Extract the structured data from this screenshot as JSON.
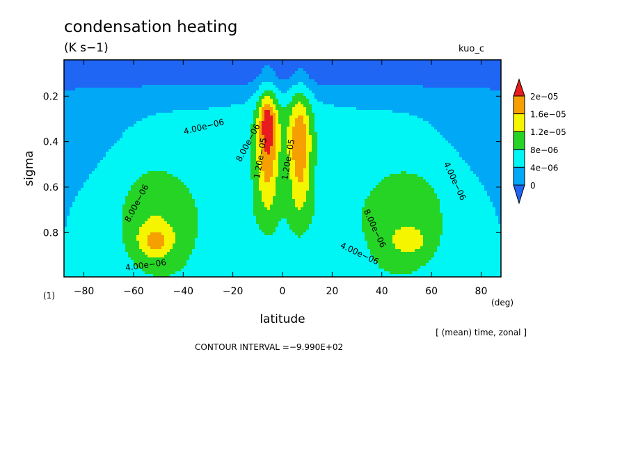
{
  "chart_data": {
    "type": "heatmap",
    "title": "condensation heating",
    "units": "(K s−1)",
    "variable_tag": "kuo_c",
    "xlabel": "latitude",
    "ylabel": "sigma",
    "x_unit_label": "(deg)",
    "y_extra_label": "(1)",
    "xlim": [
      -88,
      88
    ],
    "ylim": [
      0.04,
      0.995
    ],
    "y_inverted": true,
    "x_ticks": [
      -80,
      -60,
      -40,
      -20,
      0,
      20,
      40,
      60,
      80
    ],
    "x_tick_labels": [
      "−80",
      "−60",
      "−40",
      "−20",
      "0",
      "20",
      "40",
      "60",
      "80"
    ],
    "y_ticks": [
      0.2,
      0.4,
      0.6,
      0.8
    ],
    "y_tick_labels": [
      "0.2",
      "0.4",
      "0.6",
      "0.8"
    ],
    "contour_labels": [
      "4.00e−06",
      "8.00e−06",
      "1.20e−05"
    ],
    "colorbar": {
      "labels": [
        "2e−05",
        "1.6e−05",
        "1.2e−05",
        "8e−06",
        "4e−06",
        "0"
      ],
      "levels": [
        0,
        4e-06,
        8e-06,
        1.2e-05,
        1.6e-05,
        2e-05
      ],
      "colors": [
        "#1f66f5",
        "#00a8f5",
        "#00f5f5",
        "#26d426",
        "#f5f500",
        "#f5a000",
        "#e81c1c"
      ]
    },
    "field_features": [
      {
        "name": "equatorial tower south of equator",
        "lat": -6,
        "sigma": 0.33,
        "max": 2.05e-05
      },
      {
        "name": "equatorial tower north of equator",
        "lat": 7,
        "sigma": 0.35,
        "max": 1.75e-05
      },
      {
        "name": "southern midlatitude maximum",
        "lat": -51,
        "sigma": 0.84,
        "max": 1.7e-05
      },
      {
        "name": "northern midlatitude maximum",
        "lat": 51,
        "sigma": 0.84,
        "max": 1.35e-05
      }
    ],
    "grid": false,
    "legend_position": "right"
  },
  "footer": {
    "averaging_note": "[ (mean) time, zonal ]",
    "contour_interval": "CONTOUR INTERVAL =−9.990E+02"
  }
}
